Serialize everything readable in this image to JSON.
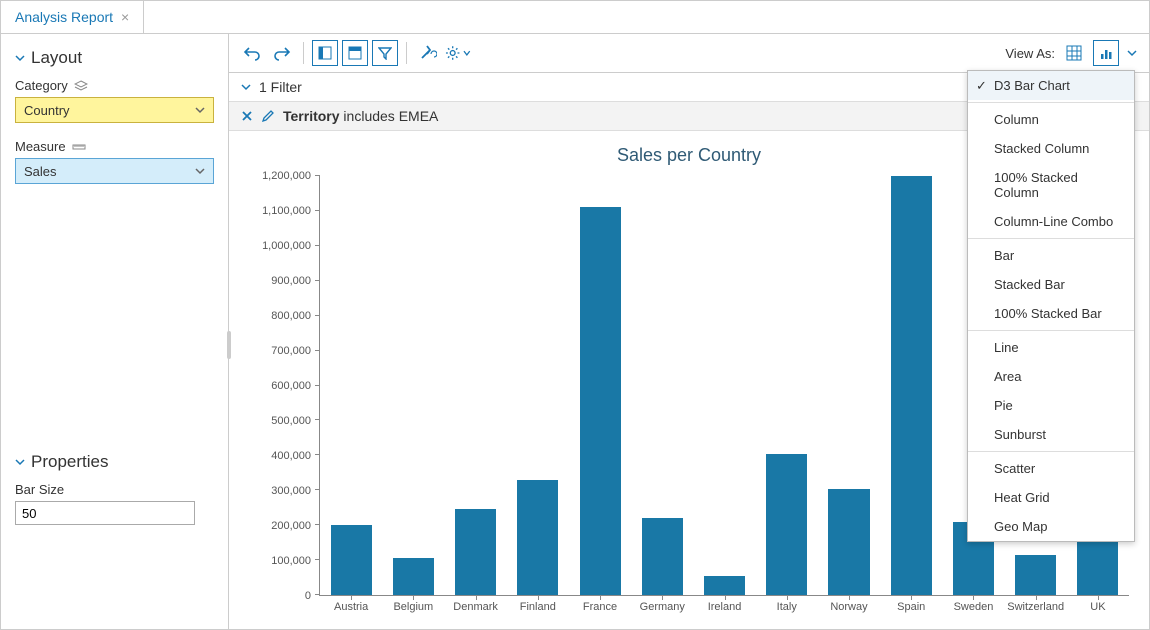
{
  "tab": {
    "title": "Analysis Report"
  },
  "sidebar": {
    "layout_title": "Layout",
    "category_label": "Category",
    "category_value": "Country",
    "measure_label": "Measure",
    "measure_value": "Sales",
    "properties_title": "Properties",
    "bar_size_label": "Bar Size",
    "bar_size_value": "50"
  },
  "toolbar": {
    "view_as_label": "View As:"
  },
  "filter": {
    "count_label": "1 Filter",
    "field": "Territory",
    "rest": " includes EMEA"
  },
  "chart": {
    "type": "bar",
    "title": "Sales per Country",
    "title_color": "#2f5a75",
    "title_fontsize": 18,
    "bar_color": "#1978a6",
    "axis_color": "#888888",
    "label_color": "#555555",
    "ylim": [
      0,
      1200000
    ],
    "ytick_step": 100000,
    "y_ticks": [
      "0",
      "100,000",
      "200,000",
      "300,000",
      "400,000",
      "500,000",
      "600,000",
      "700,000",
      "800,000",
      "900,000",
      "1,000,000",
      "1,100,000",
      "1,200,000"
    ],
    "categories": [
      "Austria",
      "Belgium",
      "Denmark",
      "Finland",
      "France",
      "Germany",
      "Ireland",
      "Italy",
      "Norway",
      "Spain",
      "Sweden",
      "Switzerland",
      "UK"
    ],
    "values": [
      200000,
      105000,
      245000,
      330000,
      1110000,
      220000,
      55000,
      405000,
      305000,
      1215000,
      210000,
      115000,
      320000
    ],
    "bar_width_pct": 66
  },
  "dropdown": {
    "groups": [
      [
        "D3 Bar Chart"
      ],
      [
        "Column",
        "Stacked Column",
        "100% Stacked Column",
        "Column-Line Combo"
      ],
      [
        "Bar",
        "Stacked Bar",
        "100% Stacked Bar"
      ],
      [
        "Line",
        "Area",
        "Pie",
        "Sunburst"
      ],
      [
        "Scatter",
        "Heat Grid",
        "Geo Map"
      ]
    ],
    "selected": "D3 Bar Chart"
  }
}
